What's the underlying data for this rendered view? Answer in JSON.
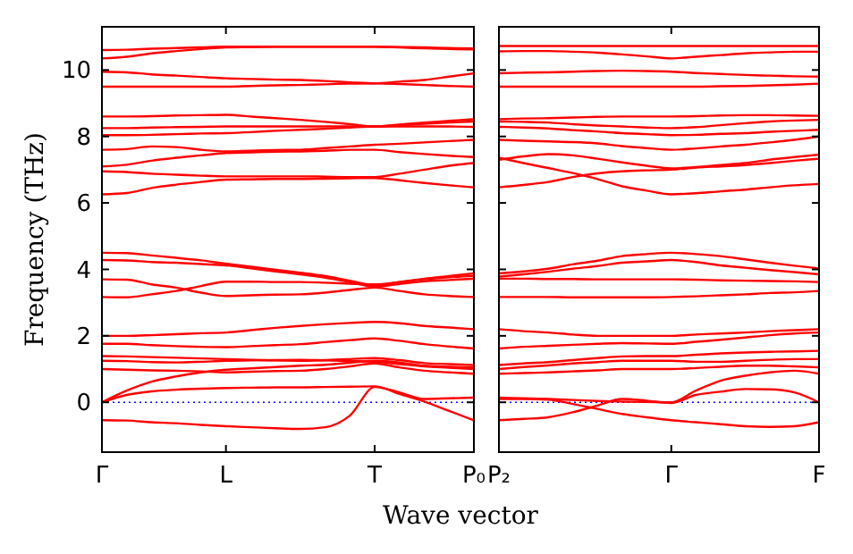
{
  "chart_data": [
    {
      "type": "line",
      "xlabel": "Wave vector",
      "ylabel": "Frequency (THz)",
      "ylim": [
        -1.5,
        11.3
      ],
      "yticks": [
        0,
        2,
        4,
        6,
        8,
        10
      ],
      "categories": [
        "Γ",
        null,
        null,
        null,
        null,
        "L",
        null,
        null,
        null,
        null,
        null,
        "T",
        null,
        null,
        null,
        "P₀"
      ],
      "ref_lines": [
        {
          "axis": "y",
          "value": 0,
          "color": "#0000ff",
          "line_style": "dotted"
        }
      ],
      "series": [
        {
          "color": "#ff0000",
          "values": [
            10.6,
            10.61,
            10.64,
            10.66,
            10.68,
            10.7,
            10.7,
            10.7,
            10.7,
            10.7,
            10.7,
            10.7,
            10.68,
            10.65,
            10.63,
            10.62
          ]
        },
        {
          "color": "#ff0000",
          "values": [
            10.35,
            10.4,
            10.5,
            10.57,
            10.63,
            10.68,
            10.69,
            10.7,
            10.7,
            10.7,
            10.7,
            10.7,
            10.69,
            10.68,
            10.66,
            10.65
          ]
        },
        {
          "color": "#ff0000",
          "values": [
            9.95,
            9.93,
            9.87,
            9.83,
            9.79,
            9.75,
            9.73,
            9.71,
            9.7,
            9.67,
            9.63,
            9.6,
            9.65,
            9.7,
            9.8,
            9.9
          ]
        },
        {
          "color": "#ff0000",
          "values": [
            9.5,
            9.5,
            9.5,
            9.5,
            9.5,
            9.5,
            9.52,
            9.54,
            9.55,
            9.57,
            9.59,
            9.6,
            9.58,
            9.55,
            9.52,
            9.5
          ]
        },
        {
          "color": "#ff0000",
          "values": [
            8.6,
            8.6,
            8.61,
            8.63,
            8.64,
            8.65,
            8.6,
            8.55,
            8.5,
            8.44,
            8.37,
            8.3,
            8.36,
            8.42,
            8.47,
            8.52
          ]
        },
        {
          "color": "#ff0000",
          "values": [
            8.25,
            8.25,
            8.27,
            8.28,
            8.29,
            8.3,
            8.3,
            8.3,
            8.3,
            8.3,
            8.3,
            8.3,
            8.34,
            8.38,
            8.42,
            8.45
          ]
        },
        {
          "color": "#ff0000",
          "values": [
            8.04,
            8.04,
            8.05,
            8.07,
            8.09,
            8.1,
            8.13,
            8.17,
            8.2,
            8.23,
            8.27,
            8.3,
            8.3,
            8.3,
            8.3,
            8.29
          ]
        },
        {
          "color": "#ff0000",
          "values": [
            7.6,
            7.62,
            7.7,
            7.68,
            7.6,
            7.55,
            7.57,
            7.59,
            7.6,
            7.65,
            7.7,
            7.75,
            7.78,
            7.82,
            7.86,
            7.9
          ]
        },
        {
          "color": "#ff0000",
          "values": [
            7.1,
            7.15,
            7.27,
            7.36,
            7.43,
            7.5,
            7.52,
            7.54,
            7.55,
            7.57,
            7.6,
            7.6,
            7.53,
            7.47,
            7.42,
            7.38
          ]
        },
        {
          "color": "#ff0000",
          "values": [
            6.95,
            6.93,
            6.88,
            6.85,
            6.82,
            6.8,
            6.8,
            6.8,
            6.8,
            6.79,
            6.78,
            6.78,
            6.88,
            7.0,
            7.12,
            7.2
          ]
        },
        {
          "color": "#ff0000",
          "values": [
            6.26,
            6.3,
            6.45,
            6.55,
            6.63,
            6.7,
            6.71,
            6.72,
            6.72,
            6.73,
            6.74,
            6.75,
            6.68,
            6.6,
            6.53,
            6.47
          ]
        },
        {
          "color": "#ff0000",
          "values": [
            4.5,
            4.49,
            4.42,
            4.35,
            4.27,
            4.17,
            4.08,
            3.99,
            3.9,
            3.8,
            3.66,
            3.52,
            3.62,
            3.72,
            3.8,
            3.88
          ]
        },
        {
          "color": "#ff0000",
          "values": [
            4.28,
            4.27,
            4.22,
            4.2,
            4.16,
            4.12,
            4.03,
            3.94,
            3.85,
            3.75,
            3.62,
            3.48,
            3.56,
            3.64,
            3.68,
            3.72
          ]
        },
        {
          "color": "#ff0000",
          "values": [
            3.7,
            3.69,
            3.55,
            3.45,
            3.3,
            3.2,
            3.22,
            3.24,
            3.25,
            3.3,
            3.38,
            3.45,
            3.35,
            3.25,
            3.2,
            3.17
          ]
        },
        {
          "color": "#ff0000",
          "values": [
            3.17,
            3.16,
            3.25,
            3.35,
            3.5,
            3.63,
            3.63,
            3.62,
            3.62,
            3.6,
            3.57,
            3.55,
            3.62,
            3.7,
            3.76,
            3.8
          ]
        },
        {
          "color": "#ff0000",
          "values": [
            2.0,
            2.0,
            2.02,
            2.05,
            2.08,
            2.1,
            2.17,
            2.24,
            2.3,
            2.35,
            2.39,
            2.42,
            2.38,
            2.3,
            2.25,
            2.2
          ]
        },
        {
          "color": "#ff0000",
          "values": [
            1.76,
            1.76,
            1.72,
            1.69,
            1.67,
            1.66,
            1.69,
            1.72,
            1.75,
            1.81,
            1.87,
            1.92,
            1.85,
            1.75,
            1.68,
            1.62
          ]
        },
        {
          "color": "#ff0000",
          "values": [
            1.39,
            1.38,
            1.36,
            1.34,
            1.32,
            1.3,
            1.28,
            1.26,
            1.25,
            1.27,
            1.3,
            1.33,
            1.27,
            1.18,
            1.15,
            1.12
          ]
        },
        {
          "color": "#ff0000",
          "values": [
            1.25,
            1.24,
            1.21,
            1.2,
            1.22,
            1.25,
            1.26,
            1.27,
            1.28,
            1.26,
            1.24,
            1.22,
            1.15,
            1.08,
            1.04,
            1.0
          ]
        },
        {
          "color": "#ff0000",
          "values": [
            1.0,
            0.98,
            0.96,
            0.95,
            0.93,
            0.9,
            0.92,
            0.94,
            0.95,
            1.0,
            1.08,
            1.17,
            1.05,
            0.95,
            0.9,
            0.86
          ]
        },
        {
          "color": "#ff0000",
          "values": [
            0,
            0.35,
            0.62,
            0.78,
            0.9,
            0.98,
            1.02,
            1.06,
            1.1,
            1.13,
            1.19,
            1.25,
            1.2,
            1.1,
            1.07,
            1.05
          ]
        },
        {
          "color": "#ff0000",
          "values": [
            0,
            0.22,
            0.33,
            0.38,
            0.41,
            0.43,
            0.44,
            0.45,
            0.45,
            0.46,
            0.47,
            0.48,
            0.25,
            0.02,
            -0.26,
            -0.54
          ]
        },
        {
          "color": "#ff0000",
          "values": [
            -0.54,
            -0.55,
            -0.6,
            -0.63,
            -0.68,
            -0.72,
            -0.75,
            -0.78,
            -0.8,
            -0.75,
            -0.4,
            0.46,
            0.3,
            0.1,
            0.12,
            0.14
          ]
        }
      ]
    },
    {
      "type": "line",
      "ylim": [
        -1.5,
        11.3
      ],
      "yticks": [
        0,
        2,
        4,
        6,
        8,
        10
      ],
      "tick_labels": "x",
      "categories": [
        "P₂",
        null,
        null,
        null,
        null,
        null,
        null,
        "Γ",
        null,
        null,
        null,
        null,
        null,
        "F"
      ],
      "ref_lines": [
        {
          "axis": "y",
          "value": 0,
          "color": "#0000ff",
          "line_style": "dotted"
        }
      ],
      "series": [
        {
          "color": "#ff0000",
          "values": [
            10.56,
            10.57,
            10.57,
            10.55,
            10.52,
            10.47,
            10.41,
            10.35,
            10.4,
            10.45,
            10.5,
            10.53,
            10.55,
            10.55
          ]
        },
        {
          "color": "#ff0000",
          "values": [
            10.72,
            10.72,
            10.72,
            10.72,
            10.72,
            10.72,
            10.72,
            10.72,
            10.72,
            10.72,
            10.72,
            10.72,
            10.72,
            10.72
          ]
        },
        {
          "color": "#ff0000",
          "values": [
            9.9,
            9.92,
            9.93,
            9.95,
            9.97,
            9.98,
            9.97,
            9.95,
            9.91,
            9.88,
            9.85,
            9.83,
            9.81,
            9.8
          ]
        },
        {
          "color": "#ff0000",
          "values": [
            9.5,
            9.5,
            9.5,
            9.5,
            9.5,
            9.5,
            9.5,
            9.5,
            9.5,
            9.51,
            9.52,
            9.54,
            9.56,
            9.59
          ]
        },
        {
          "color": "#ff0000",
          "values": [
            8.52,
            8.54,
            8.55,
            8.57,
            8.59,
            8.6,
            8.6,
            8.6,
            8.61,
            8.63,
            8.64,
            8.64,
            8.63,
            8.62
          ]
        },
        {
          "color": "#ff0000",
          "values": [
            8.45,
            8.44,
            8.42,
            8.37,
            8.33,
            8.3,
            8.27,
            8.25,
            8.28,
            8.34,
            8.4,
            8.45,
            8.48,
            8.5
          ]
        },
        {
          "color": "#ff0000",
          "values": [
            8.29,
            8.27,
            8.24,
            8.19,
            8.15,
            8.1,
            8.07,
            8.04,
            8.05,
            8.08,
            8.1,
            8.14,
            8.17,
            8.2
          ]
        },
        {
          "color": "#ff0000",
          "values": [
            7.9,
            7.87,
            7.85,
            7.83,
            7.79,
            7.71,
            7.65,
            7.6,
            7.64,
            7.7,
            7.75,
            7.82,
            7.9,
            8.0
          ]
        },
        {
          "color": "#ff0000",
          "values": [
            7.3,
            7.4,
            7.47,
            7.43,
            7.33,
            7.22,
            7.12,
            7.04,
            7.08,
            7.14,
            7.2,
            7.3,
            7.38,
            7.45
          ]
        },
        {
          "color": "#ff0000",
          "values": [
            7.36,
            7.2,
            7.05,
            6.9,
            6.72,
            6.5,
            6.37,
            6.26,
            6.29,
            6.35,
            6.4,
            6.47,
            6.53,
            6.57
          ]
        },
        {
          "color": "#ff0000",
          "values": [
            6.47,
            6.54,
            6.63,
            6.78,
            6.89,
            6.95,
            6.98,
            7.0,
            7.06,
            7.1,
            7.14,
            7.2,
            7.27,
            7.33
          ]
        },
        {
          "color": "#ff0000",
          "values": [
            3.88,
            3.94,
            4.02,
            4.15,
            4.26,
            4.4,
            4.46,
            4.5,
            4.46,
            4.4,
            4.3,
            4.2,
            4.11,
            4.03
          ]
        },
        {
          "color": "#ff0000",
          "values": [
            3.78,
            3.85,
            3.93,
            4.02,
            4.1,
            4.2,
            4.24,
            4.28,
            4.22,
            4.12,
            4.05,
            3.98,
            3.92,
            3.85
          ]
        },
        {
          "color": "#ff0000",
          "values": [
            3.72,
            3.72,
            3.71,
            3.71,
            3.7,
            3.7,
            3.7,
            3.7,
            3.69,
            3.67,
            3.66,
            3.65,
            3.64,
            3.62
          ]
        },
        {
          "color": "#ff0000",
          "values": [
            3.17,
            3.17,
            3.17,
            3.16,
            3.16,
            3.16,
            3.16,
            3.17,
            3.19,
            3.22,
            3.25,
            3.29,
            3.31,
            3.35
          ]
        },
        {
          "color": "#ff0000",
          "values": [
            2.2,
            2.14,
            2.1,
            2.04,
            2.0,
            2.0,
            2.0,
            2.0,
            2.04,
            2.07,
            2.1,
            2.14,
            2.17,
            2.2
          ]
        },
        {
          "color": "#ff0000",
          "values": [
            1.62,
            1.67,
            1.7,
            1.73,
            1.76,
            1.78,
            1.77,
            1.76,
            1.82,
            1.88,
            1.95,
            2.02,
            2.07,
            2.1
          ]
        },
        {
          "color": "#ff0000",
          "values": [
            1.12,
            1.17,
            1.21,
            1.27,
            1.33,
            1.38,
            1.39,
            1.39,
            1.43,
            1.47,
            1.5,
            1.52,
            1.53,
            1.55
          ]
        },
        {
          "color": "#ff0000",
          "values": [
            1.0,
            1.06,
            1.11,
            1.17,
            1.21,
            1.25,
            1.25,
            1.25,
            1.22,
            1.22,
            1.25,
            1.28,
            1.3,
            1.3
          ]
        },
        {
          "color": "#ff0000",
          "values": [
            0.86,
            0.88,
            0.9,
            0.93,
            0.96,
            1.0,
            1.0,
            1.0,
            1.03,
            1.07,
            1.1,
            1.1,
            1.08,
            1.05
          ]
        },
        {
          "color": "#ff0000",
          "values": [
            0.14,
            0.12,
            0.1,
            0.07,
            0.04,
            0.02,
            0.01,
            0,
            0.35,
            0.65,
            0.8,
            0.9,
            0.95,
            0.86
          ]
        },
        {
          "color": "#ff0000",
          "values": [
            0.1,
            0.1,
            0.08,
            -0.05,
            -0.2,
            -0.35,
            -0.45,
            -0.54,
            -0.6,
            -0.66,
            -0.72,
            -0.74,
            -0.72,
            -0.6
          ]
        },
        {
          "color": "#ff0000",
          "values": [
            -0.54,
            -0.5,
            -0.45,
            -0.3,
            -0.1,
            0.1,
            0.05,
            -0.02,
            0.22,
            0.32,
            0.4,
            0.39,
            0.3,
            0.0
          ]
        }
      ]
    }
  ]
}
